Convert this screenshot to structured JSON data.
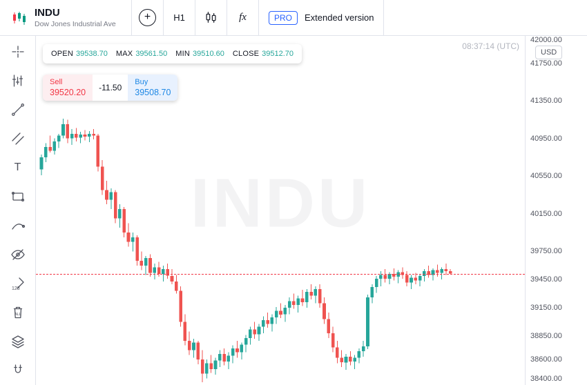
{
  "header": {
    "symbol": "INDU",
    "symbol_full": "Dow Jones Industrial Ave",
    "add_glyph": "+",
    "timeframe": "H1",
    "fx_glyph": "fx",
    "pro_label": "PRO",
    "extended_label": "Extended version"
  },
  "sidebar": {
    "text_tool": "T",
    "eraser_numbers": "123",
    "trash_all": "ALL"
  },
  "info_bar": {
    "open_label": "OPEN",
    "open": "39538.70",
    "max_label": "MAX",
    "max": "39561.50",
    "min_label": "MIN",
    "min": "39510.60",
    "close_label": "CLOSE",
    "close": "39512.70"
  },
  "trade_panel": {
    "sell_label": "Sell",
    "sell_price": "39520.20",
    "spread": "-11.50",
    "buy_label": "Buy",
    "buy_price": "39508.70"
  },
  "clock": "08:37:14 (UTC)",
  "currency": "USD",
  "watermark": "INDU",
  "colors": {
    "up": "#26a69a",
    "down": "#ef5350",
    "price_line": "#f23645",
    "accent_blue": "#2962ff"
  },
  "chart_data": {
    "type": "candlestick",
    "symbol": "INDU",
    "timeframe": "H1",
    "ylim": [
      38330,
      42040
    ],
    "y_axis_labels": [
      "42000.00",
      "41750.00",
      "41350.00",
      "40950.00",
      "40550.00",
      "40150.00",
      "39750.00",
      "39450.00",
      "39150.00",
      "38850.00",
      "38600.00",
      "38400.00"
    ],
    "price_line": 39512.7,
    "last_candle": {
      "open": 39538.7,
      "high": 39561.5,
      "low": 39510.6,
      "close": 39512.7
    },
    "up_color": "#26a69a",
    "down_color": "#ef5350",
    "candles": [
      [
        40620,
        40780,
        40560,
        40750
      ],
      [
        40750,
        40900,
        40700,
        40860
      ],
      [
        40860,
        40980,
        40800,
        40820
      ],
      [
        40820,
        40950,
        40780,
        40920
      ],
      [
        40920,
        41000,
        40850,
        40980
      ],
      [
        40980,
        41160,
        40950,
        41100
      ],
      [
        41100,
        41150,
        40900,
        40950
      ],
      [
        40950,
        41050,
        40880,
        41000
      ],
      [
        41000,
        41060,
        40920,
        40960
      ],
      [
        40960,
        41020,
        40900,
        40990
      ],
      [
        40990,
        41040,
        40930,
        40970
      ],
      [
        40970,
        41030,
        40910,
        41000
      ],
      [
        41000,
        41050,
        40940,
        40980
      ],
      [
        40980,
        41000,
        40600,
        40650
      ],
      [
        40650,
        40720,
        40350,
        40400
      ],
      [
        40400,
        40500,
        40250,
        40300
      ],
      [
        40300,
        40420,
        40200,
        40380
      ],
      [
        40380,
        40400,
        40050,
        40100
      ],
      [
        40100,
        40250,
        40000,
        40200
      ],
      [
        40200,
        40220,
        39900,
        39950
      ],
      [
        39950,
        40050,
        39800,
        39850
      ],
      [
        39850,
        39950,
        39750,
        39900
      ],
      [
        39900,
        39920,
        39600,
        39650
      ],
      [
        39650,
        39750,
        39550,
        39600
      ],
      [
        39600,
        39700,
        39500,
        39680
      ],
      [
        39680,
        39720,
        39480,
        39520
      ],
      [
        39520,
        39620,
        39450,
        39580
      ],
      [
        39580,
        39640,
        39480,
        39510
      ],
      [
        39510,
        39600,
        39430,
        39560
      ],
      [
        39560,
        39620,
        39460,
        39490
      ],
      [
        39490,
        39560,
        39400,
        39430
      ],
      [
        39430,
        39500,
        39300,
        39330
      ],
      [
        39330,
        39380,
        38950,
        39000
      ],
      [
        39000,
        39080,
        38750,
        38800
      ],
      [
        38800,
        38900,
        38650,
        38700
      ],
      [
        38700,
        38820,
        38620,
        38780
      ],
      [
        38780,
        38800,
        38550,
        38600
      ],
      [
        38600,
        38700,
        38360,
        38450
      ],
      [
        38450,
        38600,
        38400,
        38560
      ],
      [
        38560,
        38650,
        38460,
        38500
      ],
      [
        38500,
        38620,
        38440,
        38590
      ],
      [
        38590,
        38700,
        38520,
        38660
      ],
      [
        38660,
        38720,
        38540,
        38580
      ],
      [
        38580,
        38680,
        38500,
        38640
      ],
      [
        38640,
        38750,
        38560,
        38720
      ],
      [
        38720,
        38800,
        38620,
        38680
      ],
      [
        38680,
        38780,
        38600,
        38760
      ],
      [
        38760,
        38860,
        38680,
        38830
      ],
      [
        38830,
        38950,
        38760,
        38920
      ],
      [
        38920,
        39000,
        38820,
        38870
      ],
      [
        38870,
        38980,
        38800,
        38950
      ],
      [
        38950,
        39060,
        38880,
        39020
      ],
      [
        39020,
        39100,
        38940,
        38980
      ],
      [
        38980,
        39080,
        38900,
        39050
      ],
      [
        39050,
        39160,
        38980,
        39120
      ],
      [
        39120,
        39200,
        39040,
        39080
      ],
      [
        39080,
        39180,
        39000,
        39150
      ],
      [
        39150,
        39260,
        39080,
        39220
      ],
      [
        39220,
        39300,
        39140,
        39180
      ],
      [
        39180,
        39280,
        39100,
        39250
      ],
      [
        39250,
        39340,
        39170,
        39210
      ],
      [
        39210,
        39350,
        39150,
        39320
      ],
      [
        39320,
        39400,
        39240,
        39280
      ],
      [
        39280,
        39380,
        39200,
        39350
      ],
      [
        39350,
        39400,
        39150,
        39200
      ],
      [
        39200,
        39260,
        38980,
        39030
      ],
      [
        39030,
        39100,
        38830,
        38880
      ],
      [
        38880,
        38950,
        38680,
        38730
      ],
      [
        38730,
        38800,
        38560,
        38620
      ],
      [
        38620,
        38700,
        38520,
        38570
      ],
      [
        38570,
        38660,
        38490,
        38630
      ],
      [
        38630,
        38690,
        38540,
        38580
      ],
      [
        38580,
        38650,
        38500,
        38620
      ],
      [
        38620,
        38720,
        38560,
        38690
      ],
      [
        38690,
        38800,
        38630,
        38740
      ],
      [
        38740,
        39290,
        38710,
        39260
      ],
      [
        39260,
        39400,
        39200,
        39370
      ],
      [
        39370,
        39490,
        39310,
        39460
      ],
      [
        39460,
        39540,
        39380,
        39500
      ],
      [
        39500,
        39560,
        39420,
        39460
      ],
      [
        39460,
        39530,
        39400,
        39510
      ],
      [
        39510,
        39570,
        39440,
        39480
      ],
      [
        39480,
        39550,
        39410,
        39530
      ],
      [
        39530,
        39580,
        39460,
        39500
      ],
      [
        39500,
        39540,
        39380,
        39420
      ],
      [
        39420,
        39500,
        39350,
        39470
      ],
      [
        39470,
        39520,
        39400,
        39440
      ],
      [
        39440,
        39510,
        39380,
        39490
      ],
      [
        39490,
        39560,
        39430,
        39540
      ],
      [
        39540,
        39600,
        39470,
        39500
      ],
      [
        39500,
        39570,
        39440,
        39550
      ],
      [
        39550,
        39610,
        39480,
        39520
      ],
      [
        39520,
        39580,
        39450,
        39560
      ],
      [
        39560,
        39620,
        39500,
        39540
      ],
      [
        39538.7,
        39561.5,
        39510.6,
        39512.7
      ]
    ]
  }
}
